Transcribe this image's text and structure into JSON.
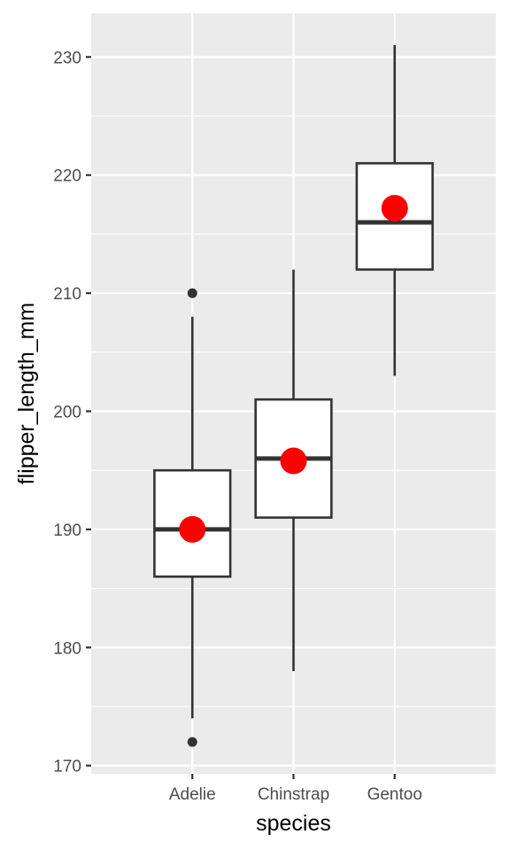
{
  "chart_data": {
    "type": "boxplot",
    "xlabel": "species",
    "ylabel": "flipper_length_mm",
    "categories": [
      "Adelie",
      "Chinstrap",
      "Gentoo"
    ],
    "ylim": [
      169.3,
      233.7
    ],
    "yticks": [
      170,
      180,
      190,
      200,
      210,
      220,
      230
    ],
    "grid": true,
    "boxes": [
      {
        "category": "Adelie",
        "whisker_low": 174,
        "q1": 186,
        "median": 190,
        "q3": 195,
        "whisker_high": 208,
        "outliers": [
          172,
          210
        ],
        "mean": 190.0
      },
      {
        "category": "Chinstrap",
        "whisker_low": 178,
        "q1": 191,
        "median": 196,
        "q3": 201,
        "whisker_high": 212,
        "outliers": [],
        "mean": 195.8
      },
      {
        "category": "Gentoo",
        "whisker_low": 203,
        "q1": 212,
        "median": 216,
        "q3": 221,
        "whisker_high": 231,
        "outliers": [],
        "mean": 217.2
      }
    ],
    "colors": {
      "panel": "#ebebeb",
      "grid": "#ffffff",
      "box_fill": "#ffffff",
      "box_line": "#333333",
      "mean_point": "#ff0000",
      "outlier": "#333333"
    }
  }
}
